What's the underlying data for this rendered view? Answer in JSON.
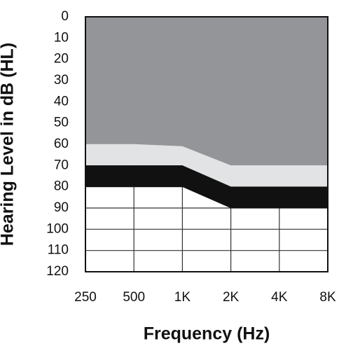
{
  "chart_data": {
    "type": "area",
    "stacked": true,
    "x_label": "Frequency (Hz)",
    "y_label": "Hearing Level in dB (HL)",
    "categories": [
      "250",
      "500",
      "1K",
      "2K",
      "4K",
      "8K"
    ],
    "series": [
      {
        "color": "#939598",
        "values": [
          60,
          60,
          61,
          70,
          70,
          70
        ]
      },
      {
        "color": "#e2e3e4",
        "values": [
          10,
          10,
          9,
          10,
          10,
          10
        ]
      },
      {
        "color": "#111111",
        "values": [
          10,
          10,
          10,
          10,
          10,
          10
        ]
      }
    ],
    "ylim": [
      120,
      0
    ],
    "yticks": [
      0,
      10,
      20,
      30,
      40,
      50,
      60,
      70,
      80,
      90,
      100,
      110,
      120
    ],
    "grid": true
  }
}
